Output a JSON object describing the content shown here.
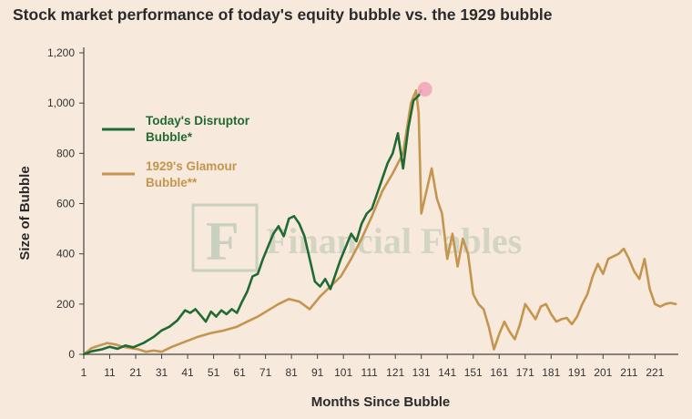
{
  "title": "Stock market performance of today's equity bubble vs. the 1929 bubble",
  "watermark": "Financial Fables",
  "chart_data": {
    "type": "line",
    "title": "Stock market performance of today's equity bubble vs. the 1929 bubble",
    "xlabel": "Months Since Bubble",
    "ylabel": "Size of Bubble",
    "xlim": [
      1,
      230
    ],
    "ylim": [
      0,
      1200
    ],
    "x_ticks": [
      1,
      11,
      21,
      31,
      41,
      51,
      61,
      71,
      81,
      91,
      101,
      111,
      121,
      131,
      141,
      151,
      161,
      171,
      181,
      191,
      201,
      211,
      221
    ],
    "y_ticks": [
      0,
      200,
      400,
      600,
      800,
      1000,
      1200
    ],
    "y_tick_labels": [
      "0",
      "200",
      "400",
      "600",
      "800",
      "1,000",
      "1,200"
    ],
    "grid": false,
    "legend": "upper-left",
    "series": [
      {
        "name": "Today's Disruptor Bubble*",
        "color": "#1f6b32",
        "x": [
          1,
          4,
          8,
          11,
          14,
          17,
          20,
          24,
          28,
          31,
          34,
          37,
          40,
          42,
          44,
          46,
          48,
          50,
          52,
          54,
          56,
          58,
          60,
          62,
          64,
          66,
          68,
          70,
          72,
          74,
          76,
          78,
          80,
          82,
          84,
          86,
          88,
          90,
          92,
          94,
          96,
          98,
          100,
          102,
          104,
          106,
          108,
          110,
          112,
          114,
          116,
          118,
          120,
          122,
          124,
          126,
          128,
          130,
          131
        ],
        "values": [
          0,
          12,
          20,
          30,
          22,
          35,
          28,
          45,
          70,
          95,
          110,
          135,
          175,
          165,
          180,
          155,
          130,
          170,
          150,
          175,
          160,
          180,
          165,
          210,
          250,
          310,
          320,
          380,
          430,
          480,
          510,
          470,
          540,
          550,
          520,
          470,
          380,
          290,
          270,
          300,
          260,
          320,
          380,
          430,
          480,
          450,
          520,
          560,
          580,
          640,
          700,
          760,
          800,
          880,
          740,
          900,
          1010,
          1030,
          1050
        ]
      },
      {
        "name": "1929's Glamour Bubble**",
        "color": "#c4954e",
        "x": [
          1,
          4,
          7,
          10,
          13,
          16,
          19,
          22,
          25,
          28,
          31,
          35,
          40,
          45,
          50,
          55,
          60,
          64,
          68,
          72,
          76,
          80,
          84,
          88,
          92,
          96,
          100,
          104,
          108,
          112,
          116,
          120,
          124,
          127,
          129,
          130,
          131,
          133,
          135,
          137,
          139,
          141,
          143,
          145,
          147,
          149,
          151,
          153,
          155,
          157,
          159,
          161,
          163,
          165,
          167,
          169,
          171,
          173,
          175,
          177,
          179,
          181,
          183,
          185,
          187,
          189,
          191,
          193,
          195,
          197,
          199,
          201,
          203,
          205,
          207,
          209,
          211,
          213,
          215,
          217,
          219,
          221,
          223,
          225,
          227,
          229
        ],
        "values": [
          0,
          25,
          35,
          45,
          40,
          30,
          25,
          20,
          10,
          15,
          10,
          30,
          50,
          70,
          85,
          95,
          110,
          130,
          150,
          175,
          200,
          220,
          210,
          180,
          230,
          270,
          310,
          380,
          460,
          550,
          650,
          720,
          800,
          1000,
          1050,
          960,
          560,
          650,
          740,
          620,
          560,
          380,
          480,
          350,
          460,
          400,
          240,
          200,
          180,
          110,
          20,
          80,
          130,
          90,
          60,
          120,
          200,
          170,
          140,
          190,
          200,
          160,
          130,
          140,
          145,
          120,
          150,
          200,
          240,
          310,
          360,
          320,
          380,
          390,
          400,
          420,
          380,
          330,
          300,
          380,
          260,
          200,
          190,
          200,
          205,
          200
        ]
      }
    ],
    "annotations": [
      {
        "type": "marker",
        "x": 131,
        "y": 1055,
        "color": "#f3a6b8"
      }
    ]
  }
}
